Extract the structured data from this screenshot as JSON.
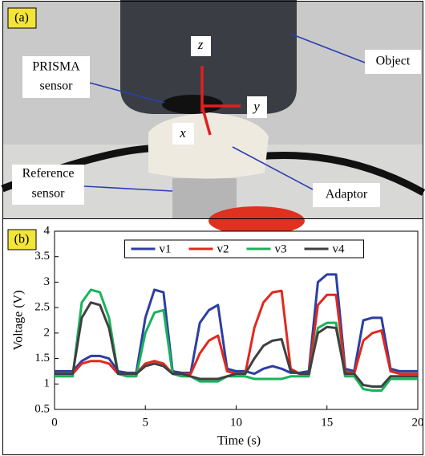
{
  "panel_a": {
    "label": "(a)",
    "object": "Object",
    "prisma_sensor": [
      "PRISMA",
      "sensor"
    ],
    "axis_z": "z",
    "axis_y": "y",
    "axis_x": "x",
    "reference_sensor": [
      "Reference",
      "sensor"
    ],
    "adaptor": "Adaptor"
  },
  "chart_data": {
    "type": "line",
    "panel_label": "(b)",
    "x_label": "Time  (s)",
    "y_label": "Voltage  (V)",
    "x": [
      0,
      0.5,
      1,
      1.5,
      2,
      2.5,
      3,
      3.5,
      4,
      4.5,
      5,
      5.5,
      6,
      6.5,
      7,
      7.5,
      8,
      8.5,
      9,
      9.5,
      10,
      10.5,
      11,
      11.5,
      12,
      12.5,
      13,
      13.5,
      14,
      14.5,
      15,
      15.5,
      16,
      16.5,
      17,
      17.5,
      18,
      18.5,
      19,
      19.5,
      20
    ],
    "series": [
      {
        "name": "v1",
        "color": "#2b3fa3",
        "values": [
          1.25,
          1.25,
          1.25,
          1.45,
          1.55,
          1.55,
          1.5,
          1.25,
          1.22,
          1.22,
          2.3,
          2.85,
          2.8,
          1.25,
          1.22,
          1.22,
          2.2,
          2.45,
          2.55,
          1.3,
          1.25,
          1.25,
          1.2,
          1.3,
          1.35,
          1.3,
          1.22,
          1.22,
          1.25,
          3.0,
          3.15,
          3.15,
          1.3,
          1.25,
          2.25,
          2.3,
          2.3,
          1.3,
          1.25,
          1.25,
          1.25
        ]
      },
      {
        "name": "v2",
        "color": "#e0291f",
        "values": [
          1.2,
          1.2,
          1.2,
          1.4,
          1.45,
          1.45,
          1.4,
          1.2,
          1.2,
          1.2,
          1.4,
          1.45,
          1.4,
          1.2,
          1.2,
          1.2,
          1.6,
          1.85,
          1.95,
          1.25,
          1.2,
          1.2,
          2.1,
          2.6,
          2.8,
          2.83,
          1.3,
          1.2,
          1.2,
          2.55,
          2.75,
          2.75,
          1.25,
          1.2,
          1.85,
          2.0,
          2.05,
          1.25,
          1.2,
          1.2,
          1.2
        ]
      },
      {
        "name": "v3",
        "color": "#19b35a",
        "values": [
          1.15,
          1.15,
          1.15,
          2.6,
          2.85,
          2.8,
          2.3,
          1.2,
          1.15,
          1.15,
          2.0,
          2.4,
          2.45,
          1.2,
          1.15,
          1.15,
          1.05,
          1.05,
          1.05,
          1.15,
          1.15,
          1.15,
          1.1,
          1.1,
          1.1,
          1.1,
          1.15,
          1.15,
          1.15,
          2.1,
          2.2,
          2.2,
          1.15,
          1.15,
          0.9,
          0.87,
          0.87,
          1.1,
          1.1,
          1.1,
          1.1
        ]
      },
      {
        "name": "v4",
        "color": "#404040",
        "values": [
          1.2,
          1.2,
          1.2,
          2.3,
          2.6,
          2.55,
          2.1,
          1.2,
          1.2,
          1.2,
          1.35,
          1.4,
          1.35,
          1.2,
          1.2,
          1.15,
          1.1,
          1.1,
          1.1,
          1.15,
          1.2,
          1.2,
          1.5,
          1.75,
          1.85,
          1.88,
          1.25,
          1.2,
          1.2,
          2.0,
          2.12,
          2.1,
          1.2,
          1.2,
          0.98,
          0.95,
          0.95,
          1.15,
          1.15,
          1.15,
          1.15
        ]
      }
    ],
    "xlim": [
      0,
      20
    ],
    "xticks": [
      0,
      5,
      10,
      15,
      20
    ],
    "ylim": [
      0.5,
      4
    ],
    "yticks": [
      0.5,
      1,
      1.5,
      2,
      2.5,
      3,
      3.5,
      4
    ],
    "grid": false,
    "legend": "top"
  }
}
